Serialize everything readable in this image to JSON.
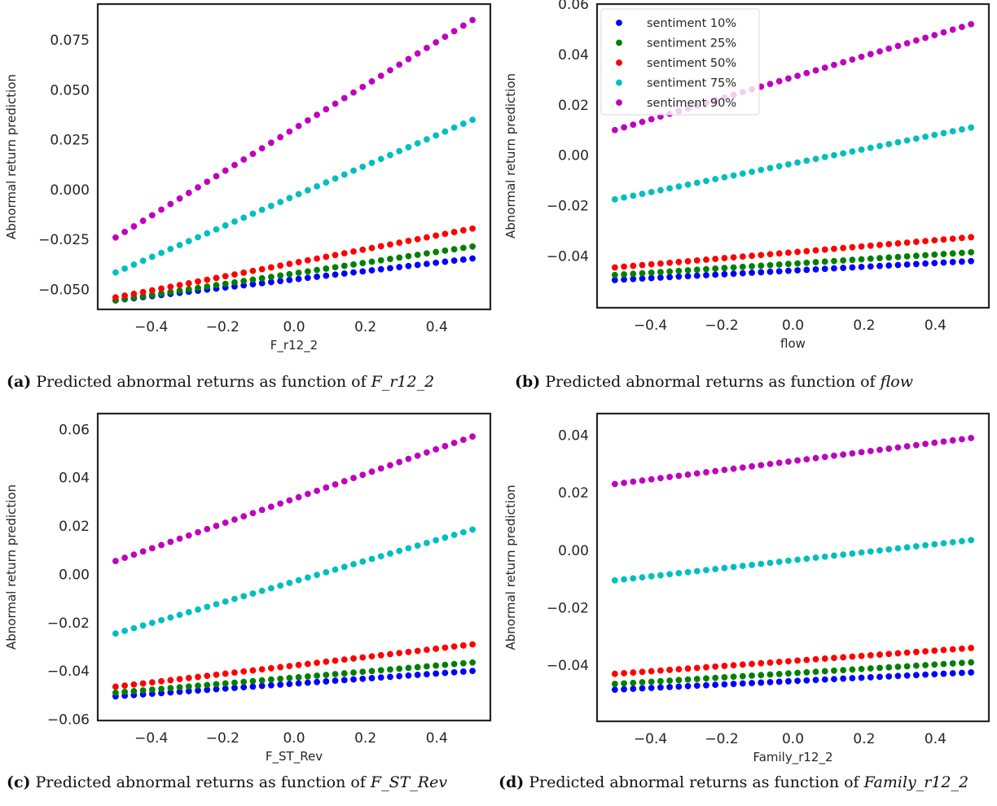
{
  "chart_data": [
    {
      "type": "scatter",
      "panel": "a",
      "xlabel": "F_r12_2",
      "ylabel": "Abnormal return prediction",
      "xlim": [
        -0.55,
        0.55
      ],
      "ylim": [
        -0.06,
        0.093
      ],
      "xticks": [
        -0.4,
        -0.2,
        0.0,
        0.2,
        0.4
      ],
      "xtick_labels": [
        "−0.4",
        "−0.2",
        "0.0",
        "0.2",
        "0.4"
      ],
      "yticks": [
        -0.05,
        -0.025,
        0.0,
        0.025,
        0.05,
        0.075
      ],
      "ytick_labels": [
        "−0.050",
        "−0.025",
        "0.000",
        "0.025",
        "0.050",
        "0.075"
      ],
      "legend": false,
      "grid": false,
      "points_per_series": 40,
      "x_range": [
        -0.5,
        0.5
      ],
      "series": [
        {
          "name": "sentiment 10%",
          "color": "#0000ff",
          "y_start": -0.0555,
          "y_end": -0.0345
        },
        {
          "name": "sentiment 25%",
          "color": "#008000",
          "y_start": -0.0555,
          "y_end": -0.0285
        },
        {
          "name": "sentiment 50%",
          "color": "#ff0000",
          "y_start": -0.054,
          "y_end": -0.0195
        },
        {
          "name": "sentiment 75%",
          "color": "#00bfbf",
          "y_start": -0.0415,
          "y_end": 0.035
        },
        {
          "name": "sentiment 90%",
          "color": "#bf00bf",
          "y_start": -0.024,
          "y_end": 0.085
        }
      ]
    },
    {
      "type": "scatter",
      "panel": "b",
      "xlabel": "flow",
      "ylabel": "Abnormal return prediction",
      "xlim": [
        -0.55,
        0.55
      ],
      "ylim": [
        -0.0605,
        0.06
      ],
      "xticks": [
        -0.4,
        -0.2,
        0.0,
        0.2,
        0.4
      ],
      "xtick_labels": [
        "−0.4",
        "−0.2",
        "0.0",
        "0.2",
        "0.4"
      ],
      "yticks": [
        -0.04,
        -0.02,
        0.0,
        0.02,
        0.04,
        0.06
      ],
      "ytick_labels": [
        "−0.04",
        "−0.02",
        "0.00",
        "0.02",
        "0.04",
        "0.06"
      ],
      "legend": true,
      "legend_position": "top-left",
      "grid": false,
      "points_per_series": 40,
      "x_range": [
        -0.5,
        0.5
      ],
      "series": [
        {
          "name": "sentiment 10%",
          "color": "#0000ff",
          "y_start": -0.0495,
          "y_end": -0.042
        },
        {
          "name": "sentiment 25%",
          "color": "#008000",
          "y_start": -0.0475,
          "y_end": -0.0385
        },
        {
          "name": "sentiment 50%",
          "color": "#ff0000",
          "y_start": -0.0445,
          "y_end": -0.0325
        },
        {
          "name": "sentiment 75%",
          "color": "#00bfbf",
          "y_start": -0.0175,
          "y_end": 0.011
        },
        {
          "name": "sentiment 90%",
          "color": "#bf00bf",
          "y_start": 0.01,
          "y_end": 0.052
        }
      ]
    },
    {
      "type": "scatter",
      "panel": "c",
      "xlabel": "F_ST_Rev",
      "ylabel": "Abnormal return prediction",
      "xlim": [
        -0.55,
        0.55
      ],
      "ylim": [
        -0.0605,
        0.0665
      ],
      "xticks": [
        -0.4,
        -0.2,
        0.0,
        0.2,
        0.4
      ],
      "xtick_labels": [
        "−0.4",
        "−0.2",
        "0.0",
        "0.2",
        "0.4"
      ],
      "yticks": [
        -0.06,
        -0.04,
        -0.02,
        0.0,
        0.02,
        0.04,
        0.06
      ],
      "ytick_labels": [
        "−0.06",
        "−0.04",
        "−0.02",
        "0.00",
        "0.02",
        "0.04",
        "0.06"
      ],
      "legend": false,
      "grid": false,
      "points_per_series": 40,
      "x_range": [
        -0.5,
        0.5
      ],
      "series": [
        {
          "name": "sentiment 10%",
          "color": "#0000ff",
          "y_start": -0.0505,
          "y_end": -0.04
        },
        {
          "name": "sentiment 25%",
          "color": "#008000",
          "y_start": -0.049,
          "y_end": -0.0365
        },
        {
          "name": "sentiment 50%",
          "color": "#ff0000",
          "y_start": -0.0465,
          "y_end": -0.029
        },
        {
          "name": "sentiment 75%",
          "color": "#00bfbf",
          "y_start": -0.0245,
          "y_end": 0.0185
        },
        {
          "name": "sentiment 90%",
          "color": "#bf00bf",
          "y_start": 0.0055,
          "y_end": 0.057
        }
      ]
    },
    {
      "type": "scatter",
      "panel": "d",
      "xlabel": "Family_r12_2",
      "ylabel": "Abnormal return prediction",
      "xlim": [
        -0.55,
        0.55
      ],
      "ylim": [
        -0.0595,
        0.0475
      ],
      "xticks": [
        -0.4,
        -0.2,
        0.0,
        0.2,
        0.4
      ],
      "xtick_labels": [
        "−0.4",
        "−0.2",
        "0.0",
        "0.2",
        "0.4"
      ],
      "yticks": [
        -0.04,
        -0.02,
        0.0,
        0.02,
        0.04
      ],
      "ytick_labels": [
        "−0.04",
        "−0.02",
        "0.00",
        "0.02",
        "0.04"
      ],
      "legend": false,
      "grid": false,
      "points_per_series": 40,
      "x_range": [
        -0.5,
        0.5
      ],
      "series": [
        {
          "name": "sentiment 10%",
          "color": "#0000ff",
          "y_start": -0.0485,
          "y_end": -0.0425
        },
        {
          "name": "sentiment 25%",
          "color": "#008000",
          "y_start": -0.0465,
          "y_end": -0.039
        },
        {
          "name": "sentiment 50%",
          "color": "#ff0000",
          "y_start": -0.043,
          "y_end": -0.034
        },
        {
          "name": "sentiment 75%",
          "color": "#00bfbf",
          "y_start": -0.0105,
          "y_end": 0.0035
        },
        {
          "name": "sentiment 90%",
          "color": "#bf00bf",
          "y_start": 0.023,
          "y_end": 0.039
        }
      ]
    }
  ],
  "captions": {
    "a": {
      "tag": "(a)",
      "text": "Predicted abnormal returns as function of",
      "var": "F_r12_2"
    },
    "b": {
      "tag": "(b)",
      "text": "Predicted abnormal returns as function of",
      "var": "flow"
    },
    "c": {
      "tag": "(c)",
      "text": "Predicted abnormal returns as function of",
      "var": "F_ST_Rev"
    },
    "d": {
      "tag": "(d)",
      "text": "Predicted abnormal returns as function of",
      "var": "Family_r12_2"
    }
  }
}
